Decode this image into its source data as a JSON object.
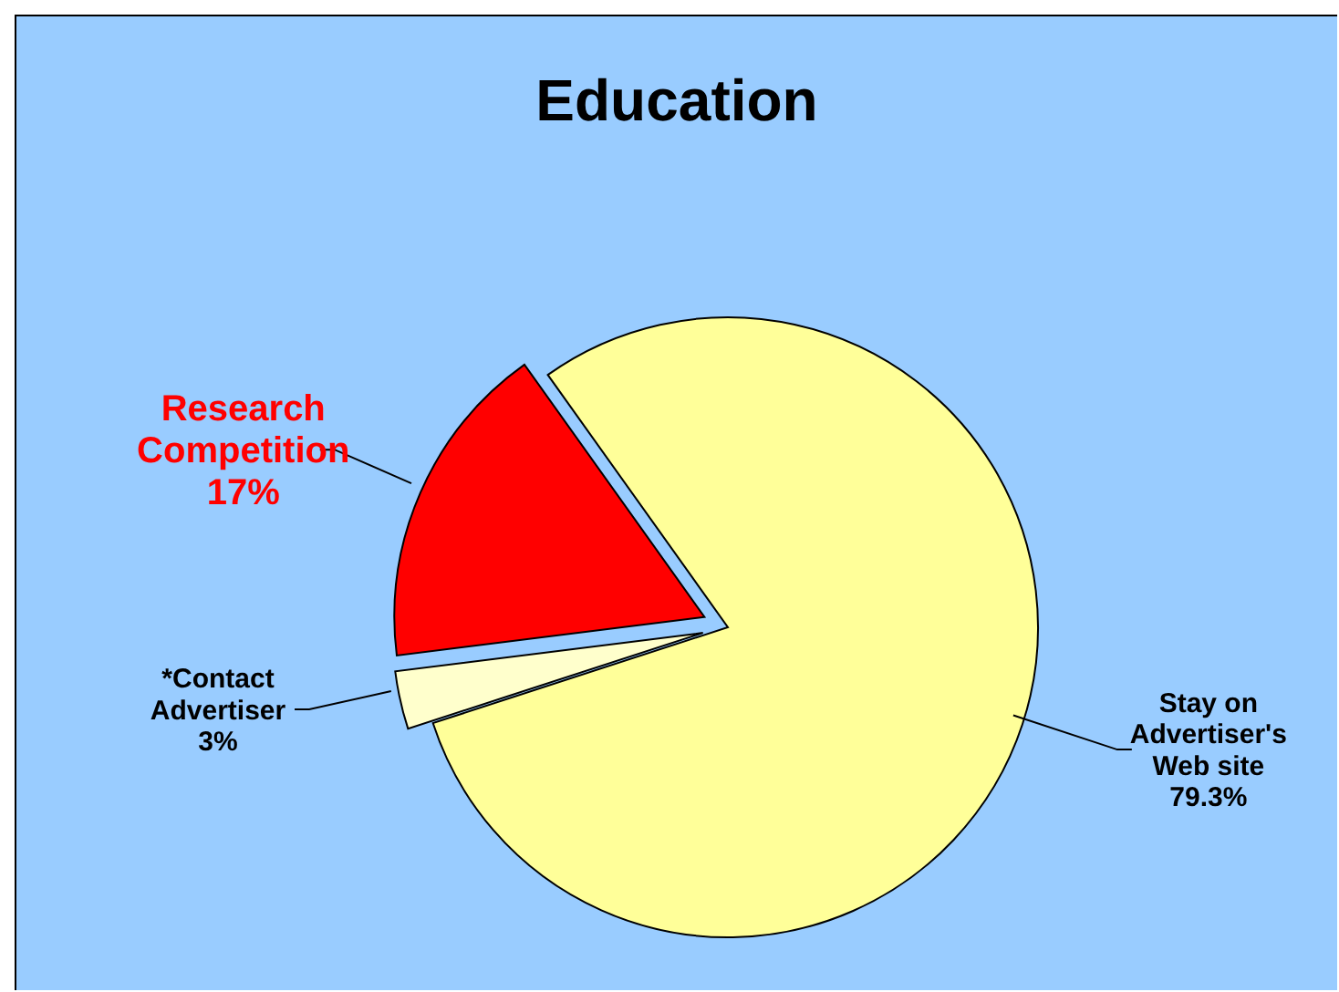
{
  "chart_data": {
    "type": "pie",
    "title": "Education",
    "categories": [
      "Stay on Advertiser's Web site",
      "Research Competition",
      "*Contact Advertiser"
    ],
    "values": [
      79.3,
      17,
      3
    ],
    "colors": [
      "#ffff99",
      "#ff0000",
      "#ffffcc"
    ],
    "value_labels": [
      "79.3%",
      "17%",
      "3%"
    ]
  }
}
